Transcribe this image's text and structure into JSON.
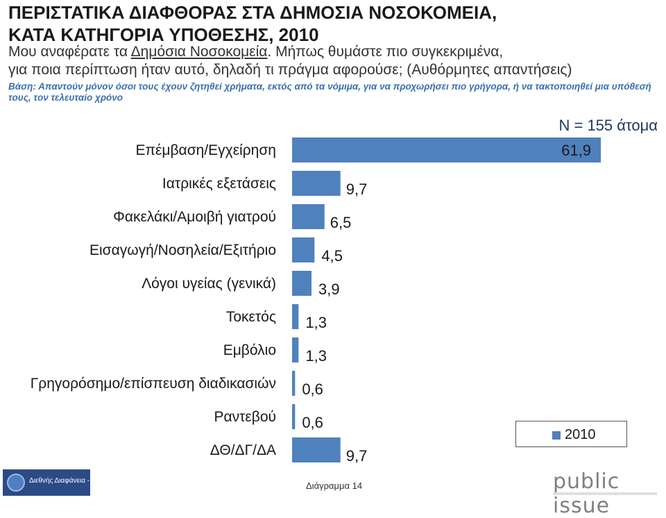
{
  "header": {
    "title_line1": "ΠΕΡΙΣΤΑΤΙΚΑ ΔΙΑΦΘΟΡΑΣ ΣΤΑ ΔΗΜΟΣΙΑ ΝΟΣΟΚΟΜΕΙΑ,",
    "title_line2": "ΚΑΤΑ ΚΑΤΗΓΟΡΙΑ ΥΠΟΘΕΣΗΣ, 2010",
    "subtitle_pre": "Μου αναφέρατε τα ",
    "subtitle_underlined": "Δημόσια Νοσοκομεία",
    "subtitle_post": ". Μήπως θυμάστε πιο συγκεκριμένα,",
    "subtitle_line2": "για ποια περίπτωση ήταν αυτό, δηλαδή τι πράγμα αφορούσε; (Αυθόρμητες απαντήσεις)",
    "basis": "Βάση: Απαντούν μόνον όσοι τους έχουν ζητηθεί χρήματα, εκτός από τα νόμιμα, για να προχωρήσει πιο γρήγορα, ή να τακτοποιηθεί μια υπόθεσή τους, τον τελευταίο χρόνο"
  },
  "chart_data": {
    "type": "bar",
    "orientation": "horizontal",
    "categories": [
      "Επέμβαση/Εγχείρηση",
      "Ιατρικές εξετάσεις",
      "Φακελάκι/Αμοιβή γιατρού",
      "Εισαγωγή/Νοσηλεία/Εξιτήριο",
      "Λόγοι υγείας (γενικά)",
      "Τοκετός",
      "Εμβόλιο",
      "Γρηγορόσημο/επίσπευση διαδικασιών",
      "Ραντεβού",
      "ΔΘ/ΔΓ/ΔΑ"
    ],
    "series": [
      {
        "name": "2010",
        "values": [
          61.9,
          9.7,
          6.5,
          4.5,
          3.9,
          1.3,
          1.3,
          0.6,
          0.6,
          9.7
        ],
        "labels": [
          "61,9",
          "9,7",
          "6,5",
          "4,5",
          "3,9",
          "1,3",
          "1,3",
          "0,6",
          "0,6",
          "9,7"
        ]
      }
    ],
    "bar_color": "#4f81bd",
    "sample_note": "N = 155 άτομα",
    "legend_position": "bottom-right",
    "grid": false
  },
  "legend": {
    "label": "2010"
  },
  "footer": {
    "logo_text": "Διεθνής Διαφάνεια - Ελλάς",
    "caption": "Διάγραμμα 14",
    "brand": "public issue"
  }
}
